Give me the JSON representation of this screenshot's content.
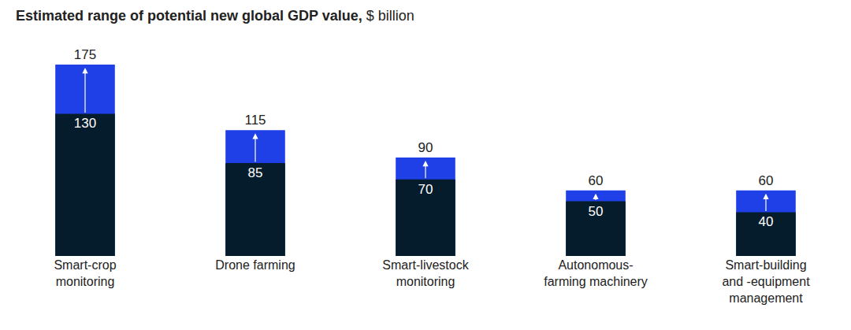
{
  "chart_data": {
    "type": "bar",
    "title": "Estimated range of potential new global GDP value, $ billion",
    "categories": [
      "Smart-crop monitoring",
      "Drone farming",
      "Smart-livestock monitoring",
      "Autonomous-farming machinery",
      "Smart-building and -equipment management"
    ],
    "series": [
      {
        "color": "#051c2c",
        "values": [
          130,
          85,
          70,
          50,
          40
        ]
      },
      {
        "color": "#1f40e6",
        "values": [
          175,
          115,
          90,
          60,
          60
        ]
      }
    ],
    "stacked": false,
    "data_labels": true,
    "tick_labels": "x",
    "grid": false,
    "ylim": [
      0,
      175
    ]
  }
}
